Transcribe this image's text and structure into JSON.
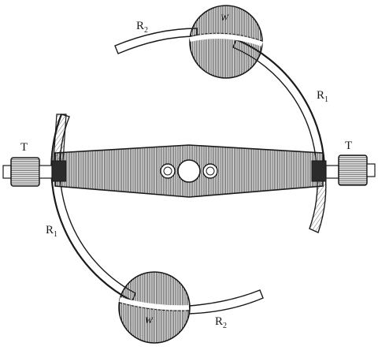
{
  "figure": {
    "labels": {
      "t_left": "T",
      "t_right": "T",
      "w_top": "W",
      "w_bottom": "W",
      "r2_main": "R",
      "r2_sub": "2",
      "r1_right_main": "R",
      "r1_right_sub": "1",
      "r1_left_main": "R",
      "r1_left_sub": "1",
      "r2_bottom_main": "R",
      "r2_bottom_sub": "2"
    },
    "colors": {
      "ink": "#1a1a1a",
      "paper": "#ffffff",
      "hatch": "#2b2b2b"
    }
  }
}
